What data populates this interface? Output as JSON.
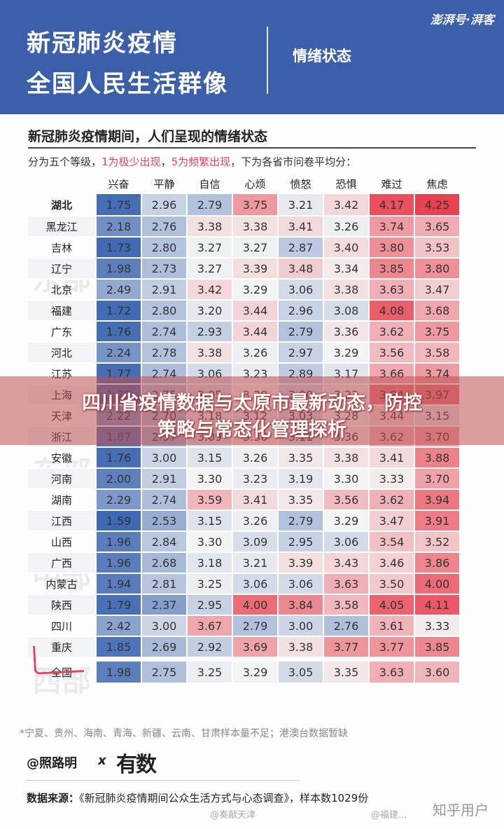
{
  "header": {
    "title_line1": "新冠肺炎疫情",
    "title_line2": "全国人民生活群像",
    "subtitle": "情绪状态",
    "brand": "澎湃号·湃客"
  },
  "section": {
    "title": "新冠肺炎疫情期间，人们呈现的情绪状态",
    "desc_part1": "分为五个等级，",
    "desc_red1": "1为极少出现",
    "desc_sep": "，",
    "desc_red2": "5为频繁出现",
    "desc_part2": "，下为各省市问卷平均分："
  },
  "region_watermarks": [
    "东部",
    "东部",
    "中部",
    "西部"
  ],
  "chart_data": {
    "type": "heatmap",
    "columns": [
      "兴奋",
      "平静",
      "自信",
      "心烦",
      "愤怒",
      "恐惧",
      "难过",
      "焦虑"
    ],
    "rows": [
      {
        "label": "湖北",
        "values": [
          1.75,
          2.96,
          2.79,
          3.75,
          3.21,
          3.42,
          4.17,
          4.25
        ]
      },
      {
        "label": "黑龙江",
        "values": [
          2.18,
          2.76,
          3.38,
          3.38,
          3.41,
          3.26,
          3.74,
          3.65
        ]
      },
      {
        "label": "吉林",
        "values": [
          1.73,
          2.8,
          3.27,
          3.27,
          2.87,
          3.4,
          3.8,
          3.53
        ]
      },
      {
        "label": "辽宁",
        "values": [
          1.98,
          2.73,
          3.27,
          3.39,
          3.48,
          3.34,
          3.85,
          3.8
        ]
      },
      {
        "label": "北京",
        "values": [
          2.49,
          2.91,
          3.42,
          3.29,
          3.06,
          3.38,
          3.63,
          3.47
        ]
      },
      {
        "label": "福建",
        "values": [
          1.72,
          2.8,
          3.2,
          3.44,
          2.96,
          3.08,
          4.08,
          3.68
        ]
      },
      {
        "label": "广东",
        "values": [
          1.76,
          2.74,
          2.93,
          3.44,
          2.79,
          3.36,
          3.62,
          3.75
        ]
      },
      {
        "label": "河北",
        "values": [
          2.24,
          2.78,
          3.38,
          3.26,
          2.97,
          3.29,
          3.56,
          3.58
        ]
      },
      {
        "label": "江苏",
        "values": [
          1.77,
          2.74,
          3.06,
          3.23,
          2.89,
          3.17,
          3.66,
          3.74
        ]
      },
      {
        "label": "上海",
        "values": [
          1.71,
          2.75,
          3.05,
          3.28,
          3.0,
          3.22,
          3.94,
          3.97
        ]
      },
      {
        "label": "天津",
        "values": [
          2.22,
          2.7,
          3.18,
          3.12,
          3.03,
          3.28,
          3.44,
          3.15
        ]
      },
      {
        "label": "浙江",
        "values": [
          1.87,
          2.57,
          3.09,
          3.36,
          3.11,
          3.36,
          3.62,
          3.7
        ]
      },
      {
        "label": "安徽",
        "values": [
          1.76,
          3.0,
          3.15,
          3.26,
          3.35,
          3.38,
          3.41,
          3.88
        ]
      },
      {
        "label": "河南",
        "values": [
          2.0,
          2.91,
          3.3,
          3.23,
          3.19,
          3.3,
          3.33,
          3.7
        ]
      },
      {
        "label": "湖南",
        "values": [
          2.29,
          2.74,
          3.59,
          3.41,
          3.35,
          3.56,
          3.62,
          3.94
        ]
      },
      {
        "label": "江西",
        "values": [
          1.59,
          2.53,
          3.15,
          3.26,
          2.79,
          3.29,
          3.47,
          3.91
        ]
      },
      {
        "label": "山西",
        "values": [
          1.96,
          2.84,
          3.3,
          3.09,
          2.95,
          3.06,
          3.54,
          3.52
        ]
      },
      {
        "label": "广西",
        "values": [
          1.96,
          2.68,
          3.18,
          3.21,
          3.39,
          3.43,
          3.46,
          3.86
        ]
      },
      {
        "label": "内蒙古",
        "values": [
          1.94,
          2.81,
          3.25,
          3.06,
          3.06,
          3.63,
          3.5,
          4.0
        ]
      },
      {
        "label": "陕西",
        "values": [
          1.79,
          2.37,
          2.95,
          4.0,
          3.84,
          3.58,
          4.05,
          4.11
        ]
      },
      {
        "label": "四川",
        "values": [
          2.42,
          3.0,
          3.67,
          2.79,
          3.0,
          2.76,
          3.61,
          3.33
        ]
      },
      {
        "label": "重庆",
        "values": [
          1.85,
          2.69,
          2.92,
          3.69,
          3.38,
          3.77,
          3.77,
          3.85
        ]
      },
      {
        "label": "全国",
        "values": [
          1.98,
          2.75,
          3.25,
          3.29,
          3.05,
          3.35,
          3.63,
          3.6
        ]
      }
    ],
    "color_low": "#3f69b2",
    "color_mid": "#f4f4f4",
    "color_high": "#e8414f"
  },
  "footnote": "*宁夏、贵州、海南、青海、新疆、云南、甘肃样本量不足；港澳台数据暂缺",
  "credit": {
    "author": "@照路明",
    "x": "x",
    "partner": "有数"
  },
  "source": {
    "label": "数据来源：",
    "text": "《新冠肺炎疫情期间公众生活方式与心态调查》，样本数1029份"
  },
  "watermarks": {
    "left": "@奏献天津",
    "right": "@福建...",
    "zhihu": "知乎用户"
  },
  "banner": {
    "line1": "四川省疫情数据与太原市最新动态，防控",
    "line2": "策略与常态化管理探析"
  }
}
